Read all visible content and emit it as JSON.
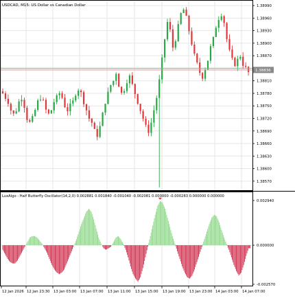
{
  "window": {
    "title": "USDCAD, M15:  US Dollar vs Canadian Dollar",
    "symbol": "USDCAD",
    "timeframe": "M15"
  },
  "colors": {
    "bull": "#27a844",
    "bear": "#e0373b",
    "hist_pos": "#8fd98a",
    "hist_neg": "#d0314f",
    "grid": "#e6e6e6",
    "frame": "#000000",
    "bid_line": "#ef8b8b",
    "ask_line": "#7fbf7f",
    "price_badge": "#8a8a8a",
    "arrow": "#e0373b"
  },
  "price_axis": {
    "labels": [
      "1.38990",
      "1.38960",
      "1.38930",
      "1.38900",
      "1.38870",
      "1.38840",
      "1.38810",
      "1.38780",
      "1.38750",
      "1.38720",
      "1.38690",
      "1.38660",
      "1.38630",
      "1.38600",
      "1.38570"
    ],
    "current_price": "1.38836"
  },
  "indicator": {
    "header": "LuxAlgo - Half Butterfly Oscillator(14,2,0) 0.002881 0.001840 -0.001040 -0.002081 0.000000 -0.000283 0.000000 0.000000",
    "axis_labels": [
      "0.002940",
      "0.000000",
      "-0.002570"
    ]
  },
  "time_axis": {
    "labels": [
      "12 Jan 2026",
      "12 Jan 23:30",
      "13 Jan 03:00",
      "13 Jan 07:00",
      "13 Jan 11:00",
      "13 Jan 15:00",
      "13 Jan 19:00",
      "13 Jan 23:00",
      "14 Jan 03:00",
      "14 Jan 07:00"
    ]
  },
  "chart_data": {
    "type": "candlestick",
    "symbol": "USDCAD",
    "timeframe": "M15",
    "y_range": [
      1.3855,
      1.39
    ],
    "close_path": [
      1.3878,
      1.3877,
      1.3876,
      1.3874,
      1.3873,
      1.3874,
      1.3876,
      1.3877,
      1.3875,
      1.3872,
      1.3871,
      1.3872,
      1.3874,
      1.3876,
      1.3877,
      1.3876,
      1.3874,
      1.3873,
      1.3874,
      1.3876,
      1.3877,
      1.3878,
      1.3877,
      1.3875,
      1.3874,
      1.3875,
      1.3876,
      1.3878,
      1.3879,
      1.3878,
      1.3876,
      1.3874,
      1.3872,
      1.3871,
      1.3869,
      1.3868,
      1.387,
      1.3873,
      1.3876,
      1.3878,
      1.388,
      1.3881,
      1.3883,
      1.388,
      1.3878,
      1.3879,
      1.3881,
      1.3882,
      1.388,
      1.3878,
      1.3876,
      1.3874,
      1.3872,
      1.387,
      1.3869,
      1.3871,
      1.3874,
      1.3877,
      1.3881,
      1.3886,
      1.3891,
      1.3895,
      1.3893,
      1.3889,
      1.3891,
      1.3894,
      1.3897,
      1.3898,
      1.3896,
      1.3893,
      1.389,
      1.3887,
      1.3885,
      1.3883,
      1.3882,
      1.3884,
      1.3886,
      1.3889,
      1.3891,
      1.3894,
      1.3896,
      1.3897,
      1.3895,
      1.3891,
      1.3888,
      1.3886,
      1.3885,
      1.3886,
      1.3887,
      1.3885,
      1.3884,
      1.3883
    ],
    "indicator_range": [
      -0.00257,
      0.00294
    ],
    "indicator_values": [
      -0.0003,
      -0.0006,
      -0.0009,
      -0.0011,
      -0.0012,
      -0.0012,
      -0.001,
      -0.0007,
      -0.0004,
      -0.0001,
      0.0002,
      0.0005,
      0.0006,
      0.0006,
      0.0005,
      0.0003,
      0.0001,
      -0.0002,
      -0.0005,
      -0.0009,
      -0.0013,
      -0.0016,
      -0.0018,
      -0.0019,
      -0.0018,
      -0.0016,
      -0.0012,
      -0.0008,
      -0.0004,
      0.0,
      0.0004,
      0.0009,
      0.0014,
      0.0018,
      0.0022,
      0.0024,
      0.0022,
      0.0017,
      0.0011,
      0.0005,
      0.0001,
      -0.0002,
      -0.0003,
      -0.0002,
      -0.0001,
      0.0002,
      0.0005,
      0.0006,
      0.0004,
      0.0001,
      -0.0003,
      -0.0008,
      -0.0014,
      -0.0019,
      -0.0022,
      -0.0024,
      -0.0021,
      -0.0015,
      -0.0008,
      -0.0001,
      0.0006,
      0.0013,
      0.002,
      0.0026,
      0.0029,
      0.0028,
      0.0024,
      0.0018,
      0.0012,
      0.0006,
      0.0001,
      -0.0004,
      -0.0009,
      -0.0014,
      -0.0018,
      -0.0021,
      -0.0022,
      -0.002,
      -0.0016,
      -0.0011,
      -0.0006,
      -0.0001,
      0.0004,
      0.0009,
      0.0014,
      0.0018,
      0.002,
      0.0019,
      0.0015,
      0.001,
      0.0005,
      0.0001,
      -0.0003,
      -0.0008,
      -0.0013,
      -0.0017,
      -0.002,
      -0.0018,
      -0.0013,
      -0.0007,
      -0.0002
    ]
  }
}
